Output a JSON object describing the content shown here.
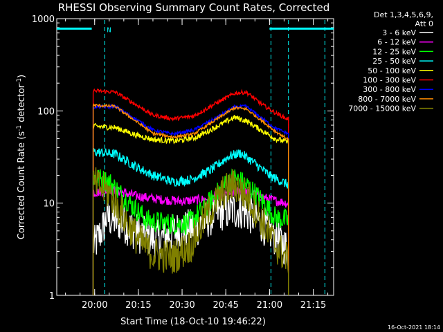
{
  "chart_data": {
    "type": "line",
    "title": "RHESSI Observing Summary Count Rates, Corrected",
    "xlabel": "Start Time (18-Oct-10 19:46:22)",
    "ylabel": "Corrected Count Rate (s",
    "ylabel_sup1": "-1",
    "ylabel_mid": " detector",
    "ylabel_sup2": "-1",
    "ylabel_end": ")",
    "y_scale": "log",
    "ylim": [
      1,
      1000
    ],
    "y_ticks": [
      {
        "value": 1,
        "label": "1"
      },
      {
        "value": 10,
        "label": "10"
      },
      {
        "value": 100,
        "label": "100"
      },
      {
        "value": 1000,
        "label": "1000"
      }
    ],
    "xlim_minutes": [
      -13,
      82
    ],
    "x_ticks": [
      {
        "minute": 0,
        "label": "20:00"
      },
      {
        "minute": 15,
        "label": "20:15"
      },
      {
        "minute": 30,
        "label": "20:30"
      },
      {
        "minute": 45,
        "label": "20:45"
      },
      {
        "minute": 60,
        "label": "21:00"
      },
      {
        "minute": 75,
        "label": "21:15"
      }
    ],
    "x_minor_step_minutes": 5,
    "legend_header": [
      "Det 1,3,4,5,6,9,",
      "Att 0"
    ],
    "legend_position": "right",
    "flag_label": "N",
    "series": [
      {
        "name": "3 - 6 keV",
        "color": "#ffffff",
        "noise": 0.5,
        "points": [
          [
            0,
            3.5
          ],
          [
            3,
            5.5
          ],
          [
            4,
            7
          ],
          [
            10,
            6
          ],
          [
            16,
            4.5
          ],
          [
            22,
            4
          ],
          [
            28,
            5
          ],
          [
            35,
            5.5
          ],
          [
            42,
            8
          ],
          [
            50,
            8.5
          ],
          [
            55,
            7
          ],
          [
            60,
            5
          ],
          [
            64,
            3.8
          ],
          [
            66,
            3.2
          ]
        ]
      },
      {
        "name": "6 - 12 keV",
        "color": "#ff00ff",
        "noise": 0.12,
        "points": [
          [
            0,
            13
          ],
          [
            6,
            14
          ],
          [
            14,
            12
          ],
          [
            22,
            11
          ],
          [
            30,
            10.5
          ],
          [
            38,
            11
          ],
          [
            45,
            12.5
          ],
          [
            50,
            13.5
          ],
          [
            55,
            12.5
          ],
          [
            60,
            11
          ],
          [
            66,
            10
          ]
        ]
      },
      {
        "name": "12 - 25 keV",
        "color": "#00ff00",
        "noise": 0.28,
        "points": [
          [
            0,
            19
          ],
          [
            5,
            17
          ],
          [
            12,
            10
          ],
          [
            18,
            6.5
          ],
          [
            25,
            6
          ],
          [
            32,
            6
          ],
          [
            38,
            9
          ],
          [
            44,
            15
          ],
          [
            48,
            19
          ],
          [
            53,
            15
          ],
          [
            58,
            10
          ],
          [
            62,
            7
          ],
          [
            66,
            6.5
          ]
        ]
      },
      {
        "name": "25 - 50 keV",
        "color": "#00ffff",
        "noise": 0.12,
        "points": [
          [
            0,
            36
          ],
          [
            7,
            34
          ],
          [
            14,
            25
          ],
          [
            20,
            20
          ],
          [
            27,
            17
          ],
          [
            33,
            18
          ],
          [
            40,
            23
          ],
          [
            46,
            32
          ],
          [
            50,
            35
          ],
          [
            55,
            27
          ],
          [
            60,
            20
          ],
          [
            66,
            16
          ]
        ]
      },
      {
        "name": "50 - 100 keV",
        "color": "#ffff00",
        "noise": 0.07,
        "points": [
          [
            0,
            68
          ],
          [
            7,
            66
          ],
          [
            14,
            55
          ],
          [
            20,
            49
          ],
          [
            28,
            47
          ],
          [
            35,
            52
          ],
          [
            42,
            68
          ],
          [
            48,
            85
          ],
          [
            52,
            78
          ],
          [
            57,
            62
          ],
          [
            62,
            50
          ],
          [
            66,
            46
          ]
        ]
      },
      {
        "name": "100 - 300 keV",
        "color": "#ff0000",
        "noise": 0.05,
        "points": [
          [
            0,
            165
          ],
          [
            7,
            160
          ],
          [
            14,
            118
          ],
          [
            20,
            90
          ],
          [
            27,
            82
          ],
          [
            34,
            88
          ],
          [
            41,
            118
          ],
          [
            48,
            155
          ],
          [
            52,
            160
          ],
          [
            57,
            120
          ],
          [
            62,
            95
          ],
          [
            66,
            82
          ]
        ]
      },
      {
        "name": "300 - 800 keV",
        "color": "#0000ff",
        "noise": 0.04,
        "points": [
          [
            0,
            110
          ],
          [
            7,
            112
          ],
          [
            14,
            82
          ],
          [
            20,
            62
          ],
          [
            27,
            56
          ],
          [
            34,
            62
          ],
          [
            41,
            82
          ],
          [
            48,
            110
          ],
          [
            52,
            112
          ],
          [
            57,
            85
          ],
          [
            62,
            65
          ],
          [
            66,
            57
          ]
        ]
      },
      {
        "name": "800 - 7000 keV",
        "color": "#ff8c00",
        "noise": 0.035,
        "points": [
          [
            0,
            115
          ],
          [
            7,
            112
          ],
          [
            14,
            78
          ],
          [
            20,
            57
          ],
          [
            27,
            52
          ],
          [
            34,
            56
          ],
          [
            41,
            78
          ],
          [
            48,
            108
          ],
          [
            52,
            105
          ],
          [
            57,
            80
          ],
          [
            62,
            60
          ],
          [
            66,
            50
          ]
        ]
      },
      {
        "name": "7000 - 15000 keV",
        "color": "#808000",
        "noise": 0.45,
        "points": [
          [
            0,
            16
          ],
          [
            5,
            13
          ],
          [
            10,
            7
          ],
          [
            15,
            4
          ],
          [
            20,
            2.8
          ],
          [
            27,
            2.6
          ],
          [
            33,
            3.5
          ],
          [
            38,
            7
          ],
          [
            44,
            13
          ],
          [
            48,
            16
          ],
          [
            53,
            11
          ],
          [
            58,
            6
          ],
          [
            62,
            3.5
          ],
          [
            66,
            2.5
          ]
        ]
      }
    ],
    "day_segments": [
      [
        -13,
        -1
      ],
      [
        60,
        82
      ]
    ],
    "day_level": 780,
    "saa_lines_minutes": [
      3.5,
      60.5,
      66.5,
      79
    ],
    "data_interval_minutes": [
      -0.5,
      66.5
    ]
  },
  "footer": {
    "timestamp": "16-Oct-2021 18:14"
  }
}
